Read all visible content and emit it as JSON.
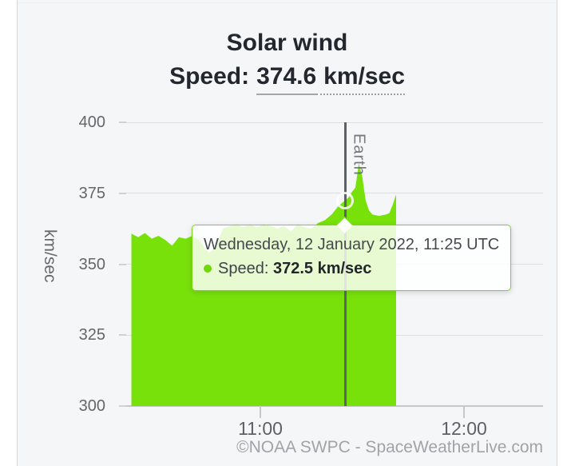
{
  "header": {
    "title": "Solar wind",
    "subtitle_label": "Speed:",
    "subtitle_value": "374.6",
    "subtitle_unit": "km/sec"
  },
  "tooltip": {
    "datetime": "Wednesday, 12 January 2022, 11:25 UTC",
    "series_label": "Speed:",
    "value_text": "372.5 km/sec"
  },
  "footer": {
    "credit": "©NOAA SWPC - SpaceWeatherLive.com"
  },
  "colors": {
    "series_green": "#78e10a",
    "tooltip_border_green": "#77d916",
    "tooltip_dot_green": "#70d708",
    "earth_line_gray": "#5d6268",
    "panel_background": "#f5f6f8",
    "gridline": "#dcdee0"
  },
  "chart_data": {
    "type": "area",
    "title": "Solar wind",
    "subtitle": "Speed: 374.6 km/sec",
    "xlabel": "",
    "ylabel": "km/sec",
    "ylim": [
      300,
      400
    ],
    "y_ticks": [
      300,
      325,
      350,
      375,
      400
    ],
    "x_ticks": [
      "11:00",
      "12:00"
    ],
    "time_range": [
      "10:22",
      "11:40"
    ],
    "grid": true,
    "legend_position": "none",
    "plotline": {
      "label": "Earth",
      "time": "11:25"
    },
    "marker": {
      "time": "11:25",
      "value": 372.5
    },
    "series": [
      {
        "name": "Speed",
        "unit": "km/sec",
        "color": "#78e10a",
        "points": [
          [
            "10:22",
            360.8
          ],
          [
            "10:24",
            359.5
          ],
          [
            "10:26",
            361.0
          ],
          [
            "10:28",
            359.0
          ],
          [
            "10:30",
            360.0
          ],
          [
            "10:32",
            358.5
          ],
          [
            "10:34",
            356.5
          ],
          [
            "10:36",
            359.5
          ],
          [
            "10:38",
            359.0
          ],
          [
            "10:40",
            360.0
          ],
          [
            "10:42",
            358.5
          ],
          [
            "10:44",
            355.0
          ],
          [
            "10:45",
            354.0
          ],
          [
            "10:47",
            356.5
          ],
          [
            "10:49",
            362.5
          ],
          [
            "10:51",
            363.5
          ],
          [
            "10:53",
            364.0
          ],
          [
            "10:55",
            363.0
          ],
          [
            "10:57",
            364.0
          ],
          [
            "10:59",
            363.0
          ],
          [
            "11:01",
            364.0
          ],
          [
            "11:03",
            363.5
          ],
          [
            "11:05",
            362.5
          ],
          [
            "11:07",
            363.5
          ],
          [
            "11:09",
            361.5
          ],
          [
            "11:11",
            364.0
          ],
          [
            "11:13",
            363.0
          ],
          [
            "11:15",
            362.5
          ],
          [
            "11:17",
            364.5
          ],
          [
            "11:19",
            365.5
          ],
          [
            "11:21",
            367.5
          ],
          [
            "11:23",
            370.5
          ],
          [
            "11:25",
            372.5
          ],
          [
            "11:26",
            373.5
          ],
          [
            "11:27",
            375.5
          ],
          [
            "11:28",
            377.0
          ],
          [
            "11:29",
            385.5
          ],
          [
            "11:30",
            381.0
          ],
          [
            "11:31",
            372.5
          ],
          [
            "11:32",
            369.0
          ],
          [
            "11:33",
            367.5
          ],
          [
            "11:35",
            367.0
          ],
          [
            "11:37",
            367.5
          ],
          [
            "11:38",
            368.0
          ],
          [
            "11:39",
            371.0
          ],
          [
            "11:40",
            374.6
          ]
        ]
      }
    ]
  }
}
